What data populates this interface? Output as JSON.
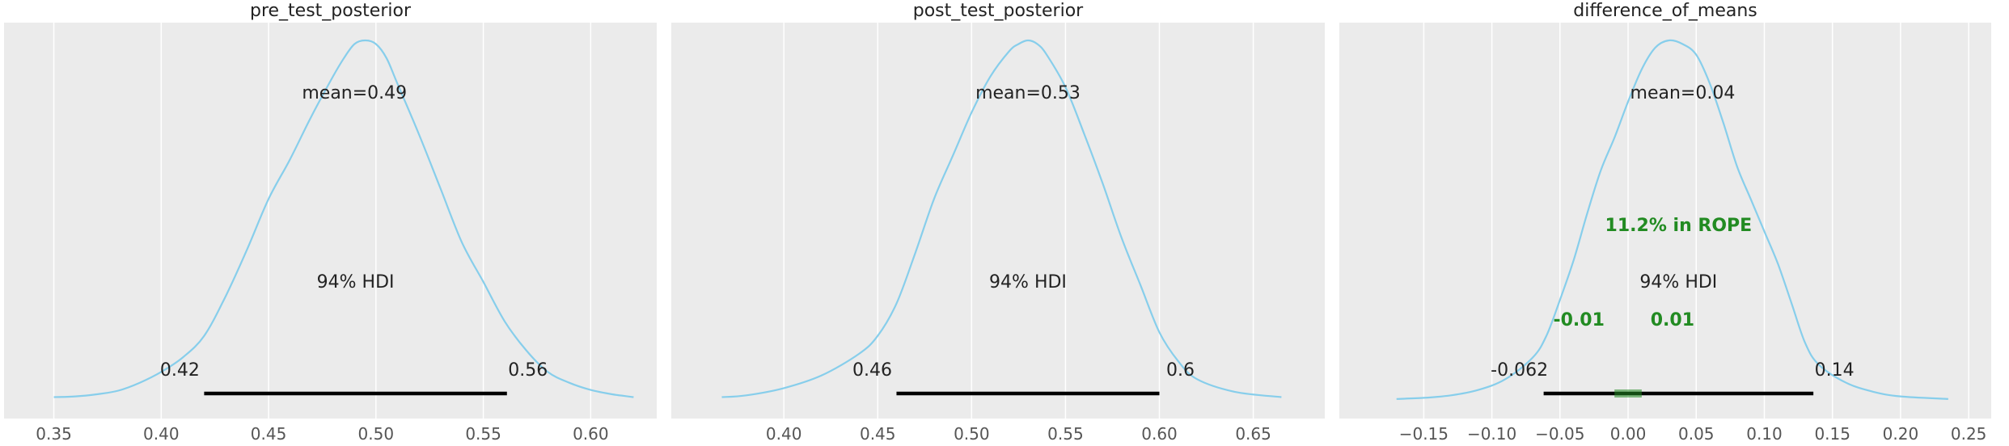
{
  "chart_data": [
    {
      "type": "density",
      "title": "pre_test_posterior",
      "xlim": [
        0.34,
        0.63
      ],
      "x_ticks": [
        0.35,
        0.4,
        0.45,
        0.5,
        0.55,
        0.6
      ],
      "x_tick_labels": [
        "0.35",
        "0.40",
        "0.45",
        "0.50",
        "0.55",
        "0.60"
      ],
      "mean_label": "mean=0.49",
      "mean": 0.49,
      "hdi_label": "94% HDI",
      "hdi_low": 0.42,
      "hdi_high": 0.561,
      "hdi_low_label": "0.42",
      "hdi_high_label": "0.56",
      "curve": {
        "x": [
          0.35,
          0.36,
          0.37,
          0.38,
          0.39,
          0.4,
          0.41,
          0.42,
          0.43,
          0.44,
          0.45,
          0.46,
          0.47,
          0.48,
          0.485,
          0.49,
          0.495,
          0.5,
          0.505,
          0.51,
          0.52,
          0.53,
          0.54,
          0.55,
          0.56,
          0.57,
          0.58,
          0.59,
          0.6,
          0.61,
          0.62
        ],
        "y": [
          0.01,
          0.012,
          0.018,
          0.028,
          0.05,
          0.08,
          0.12,
          0.18,
          0.29,
          0.42,
          0.56,
          0.67,
          0.79,
          0.9,
          0.95,
          0.99,
          1.0,
          0.99,
          0.95,
          0.88,
          0.74,
          0.59,
          0.44,
          0.33,
          0.22,
          0.14,
          0.08,
          0.05,
          0.03,
          0.018,
          0.01
        ]
      }
    },
    {
      "type": "density",
      "title": "post_test_posterior",
      "xlim": [
        0.356,
        0.673
      ],
      "x_ticks": [
        0.4,
        0.45,
        0.5,
        0.55,
        0.6,
        0.65
      ],
      "x_tick_labels": [
        "0.40",
        "0.45",
        "0.50",
        "0.55",
        "0.60",
        "0.65"
      ],
      "mean_label": "mean=0.53",
      "mean": 0.53,
      "hdi_label": "94% HDI",
      "hdi_low": 0.46,
      "hdi_high": 0.6,
      "hdi_low_label": "0.46",
      "hdi_high_label": "0.6",
      "curve": {
        "x": [
          0.367,
          0.38,
          0.4,
          0.42,
          0.44,
          0.45,
          0.46,
          0.47,
          0.48,
          0.49,
          0.5,
          0.51,
          0.52,
          0.525,
          0.53,
          0.535,
          0.54,
          0.55,
          0.56,
          0.57,
          0.58,
          0.59,
          0.6,
          0.61,
          0.62,
          0.64,
          0.665
        ],
        "y": [
          0.01,
          0.015,
          0.035,
          0.07,
          0.13,
          0.18,
          0.27,
          0.41,
          0.56,
          0.68,
          0.8,
          0.9,
          0.97,
          0.99,
          1.0,
          0.99,
          0.96,
          0.87,
          0.74,
          0.6,
          0.45,
          0.32,
          0.19,
          0.11,
          0.06,
          0.025,
          0.01
        ]
      }
    },
    {
      "type": "density",
      "title": "difference_of_means",
      "xlim": [
        -0.19,
        0.26
      ],
      "x_ticks": [
        -0.15,
        -0.1,
        -0.05,
        0.0,
        0.05,
        0.1,
        0.15,
        0.2,
        0.25
      ],
      "x_tick_labels": [
        "−0.15",
        "−0.10",
        "−0.05",
        "0.00",
        "0.05",
        "0.10",
        "0.15",
        "0.20",
        "0.25"
      ],
      "mean_label": "mean=0.04",
      "mean": 0.04,
      "hdi_label": "94% HDI",
      "hdi_low": -0.062,
      "hdi_high": 0.136,
      "hdi_low_label": "-0.062",
      "hdi_high_label": "0.14",
      "rope": [
        -0.01,
        0.01
      ],
      "rope_label": "11.2% in ROPE",
      "rope_low_label": "-0.01",
      "rope_high_label": "0.01",
      "curve": {
        "x": [
          -0.17,
          -0.15,
          -0.13,
          -0.11,
          -0.09,
          -0.07,
          -0.06,
          -0.05,
          -0.04,
          -0.03,
          -0.02,
          -0.01,
          0.0,
          0.01,
          0.02,
          0.03,
          0.04,
          0.05,
          0.06,
          0.07,
          0.08,
          0.09,
          0.1,
          0.11,
          0.12,
          0.13,
          0.14,
          0.16,
          0.18,
          0.2,
          0.235
        ],
        "y": [
          0.005,
          0.008,
          0.015,
          0.03,
          0.06,
          0.12,
          0.18,
          0.28,
          0.39,
          0.52,
          0.64,
          0.73,
          0.83,
          0.92,
          0.98,
          1.0,
          0.99,
          0.96,
          0.88,
          0.77,
          0.65,
          0.56,
          0.47,
          0.38,
          0.27,
          0.16,
          0.1,
          0.05,
          0.025,
          0.012,
          0.005
        ]
      }
    }
  ],
  "colors": {
    "panel_background": "#ebebeb",
    "grid": "#ffffff",
    "kde_line": "#87ceeb",
    "hdi_line": "#000000",
    "rope": "#228b22",
    "text": "#222222",
    "tick_text": "#555555"
  }
}
